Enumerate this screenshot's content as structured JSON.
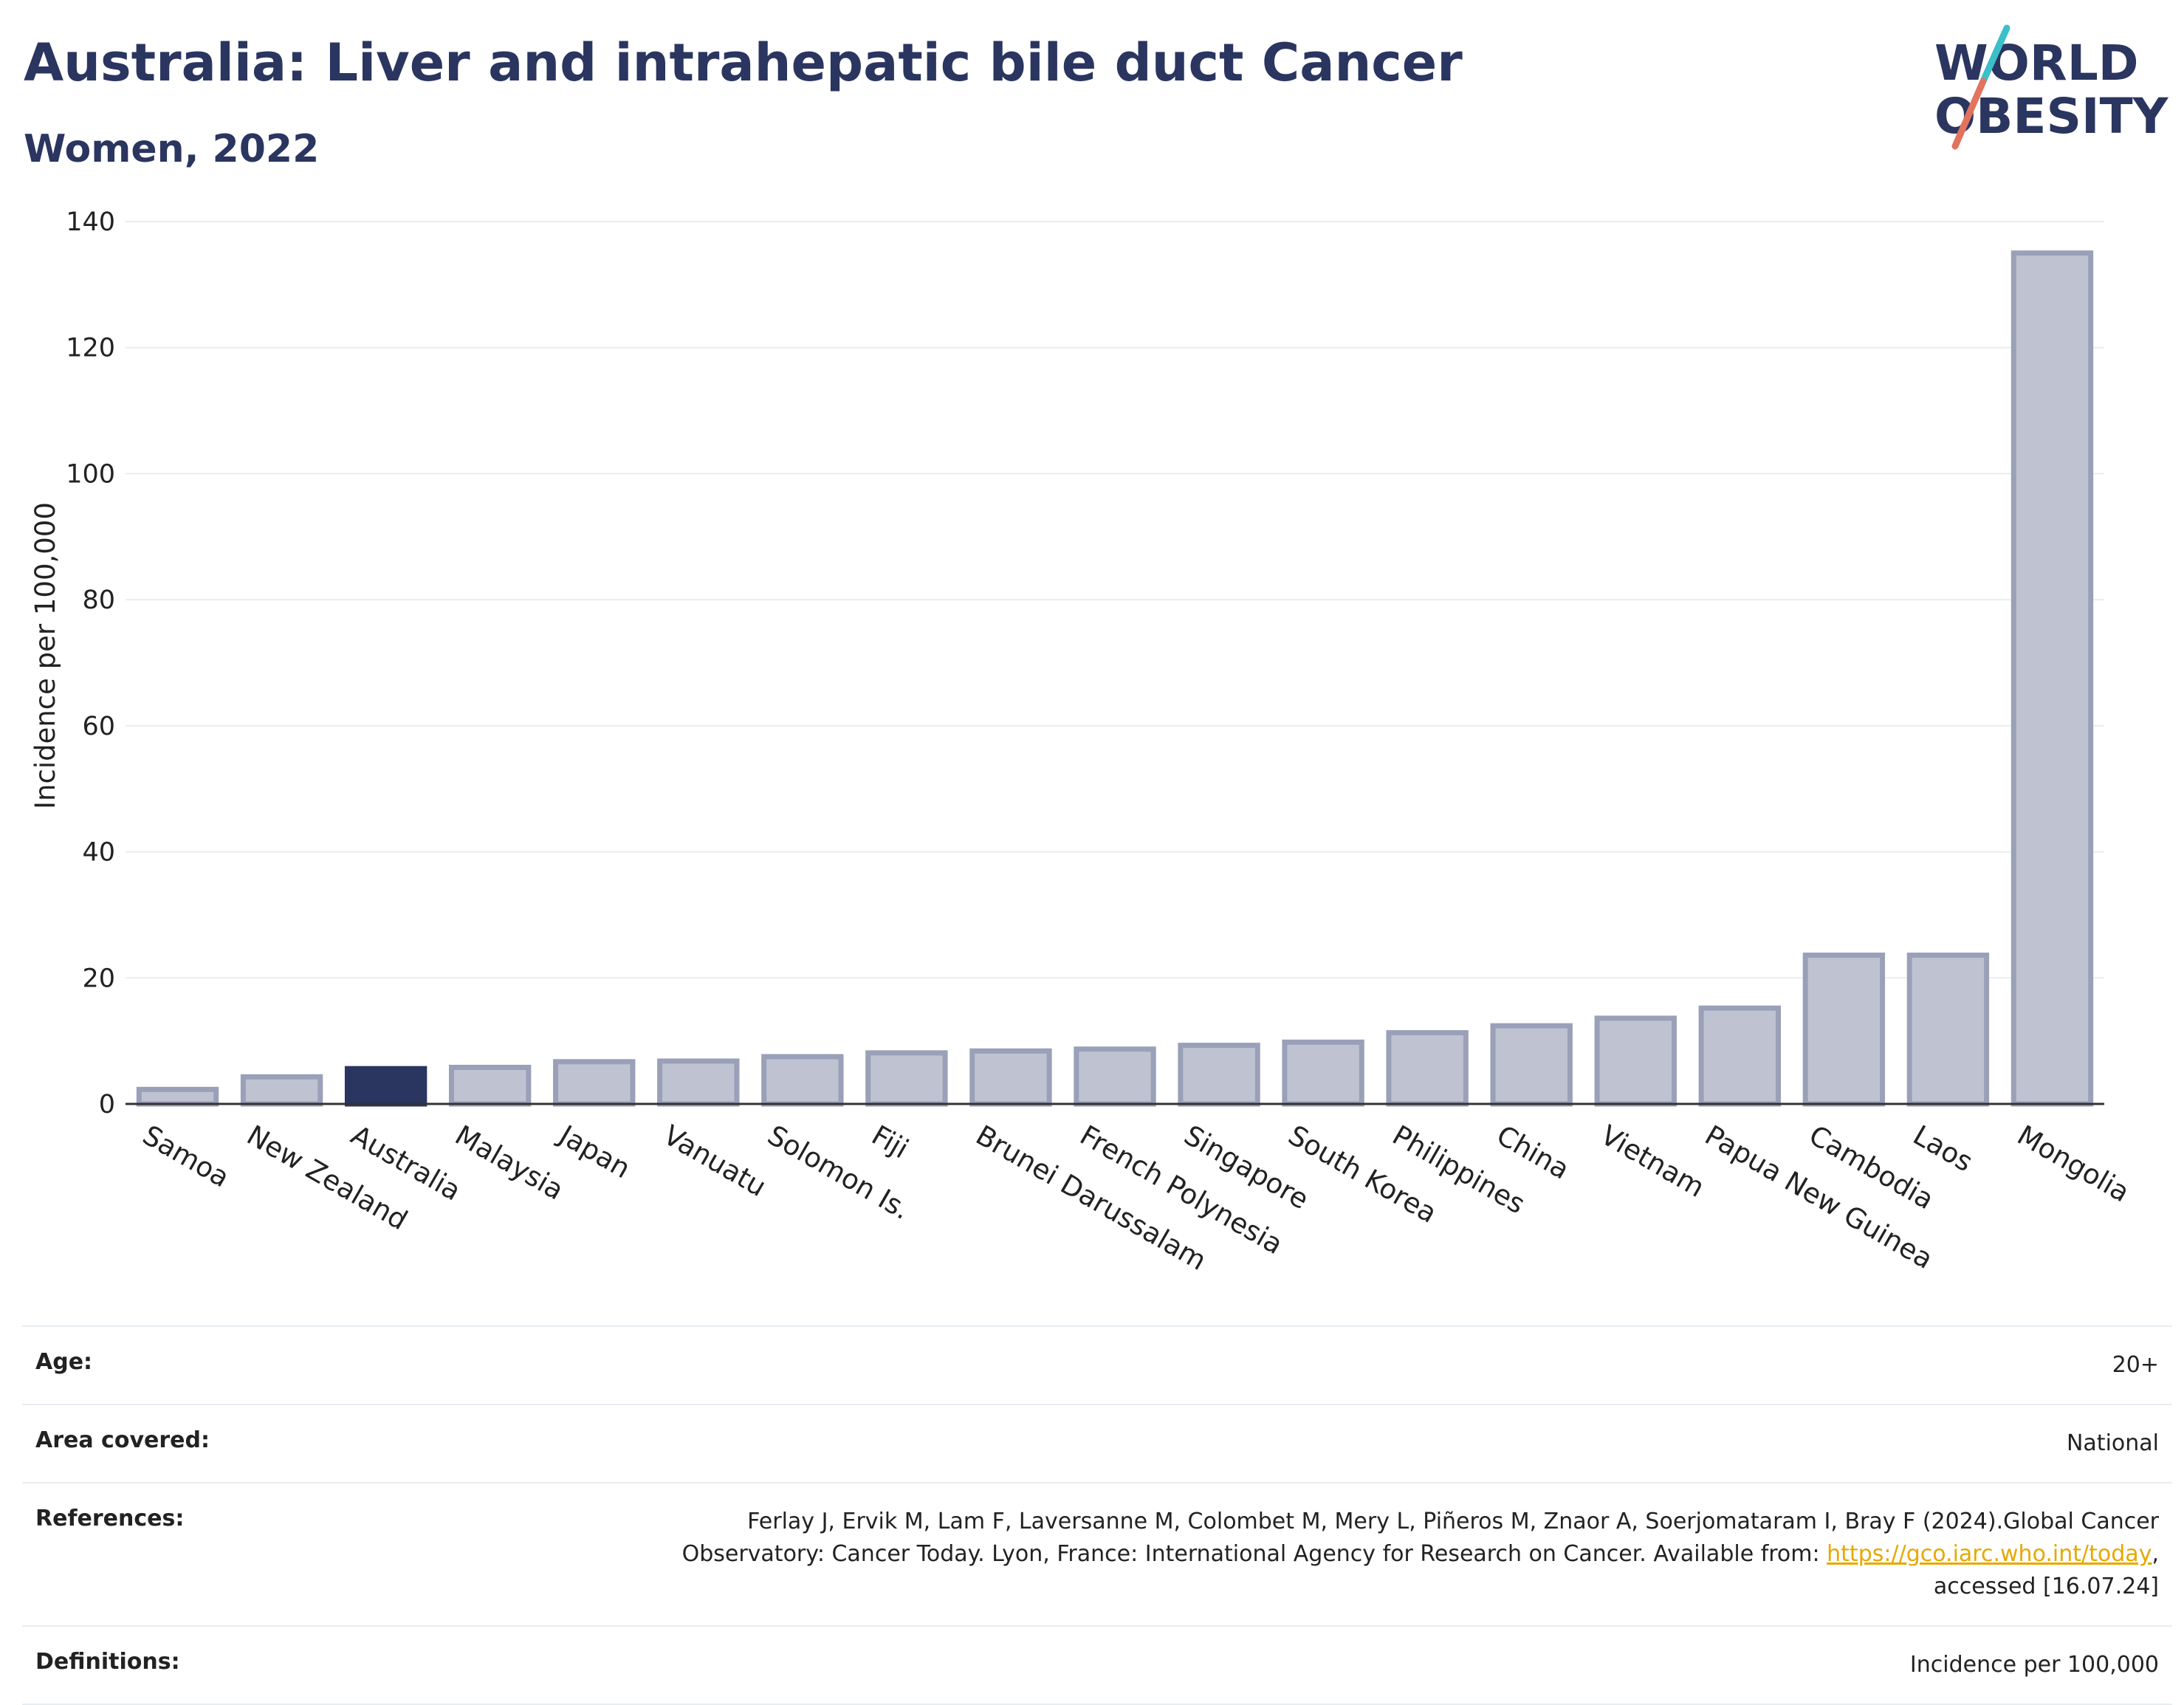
{
  "header": {
    "title": "Australia: Liver and intrahepatic bile duct Cancer",
    "subtitle": "Women, 2022"
  },
  "logo": {
    "line1": "WORLD",
    "line2": "OBESITY",
    "colors": {
      "text": "#2a3560",
      "slash_teal": "#3bbfc8",
      "slash_coral": "#e2735e"
    }
  },
  "chart_data": {
    "type": "bar",
    "ylabel": "Incidence per 100,000",
    "xlabel": "",
    "ylim": [
      0,
      140
    ],
    "yticks": [
      0,
      20,
      40,
      60,
      80,
      100,
      120,
      140
    ],
    "grid": true,
    "categories": [
      "Samoa",
      "New Zealand",
      "Australia",
      "Malaysia",
      "Japan",
      "Vanuatu",
      "Solomon Is.",
      "Fiji",
      "Brunei Darussalam",
      "French Polynesia",
      "Singapore",
      "South Korea",
      "Philippines",
      "China",
      "Vietnam",
      "Papua New Guinea",
      "Cambodia",
      "Laos",
      "Mongolia"
    ],
    "values": [
      2.3,
      4.3,
      5.6,
      5.8,
      6.7,
      6.8,
      7.5,
      8.1,
      8.4,
      8.7,
      9.3,
      9.8,
      11.3,
      12.4,
      13.6,
      15.2,
      23.6,
      23.6,
      135.0
    ],
    "highlight": "Australia",
    "colors": {
      "highlight": "#2a3560",
      "default_fill": "#bfc3d1",
      "default_stroke": "#9aa0b8"
    }
  },
  "meta": {
    "age_label": "Age:",
    "age_value": "20+",
    "area_label": "Area covered:",
    "area_value": "National",
    "references_label": "References:",
    "references_text_1": "Ferlay J, Ervik M, Lam F, Laversanne M, Colombet M, Mery L, Piñeros M, Znaor A, Soerjomataram I, Bray F (2024).Global Cancer Observatory: Cancer Today. Lyon, France: International Agency for Research on Cancer. Available from: ",
    "references_link": "https://gco.iarc.who.int/today",
    "references_text_2": ", accessed [16.07.24]",
    "definitions_label": "Definitions:",
    "definitions_value": "Incidence per 100,000"
  }
}
